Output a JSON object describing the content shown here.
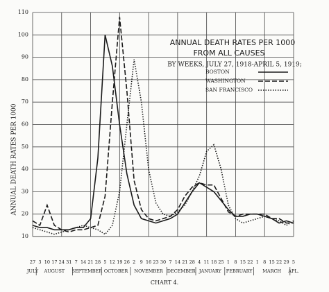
{
  "chart_data": {
    "type": "line",
    "title": [
      "ANNUAL DEATH RATES PER 1000",
      "FROM ALL CAUSES",
      "BY WEEKS, JULY 27, 1918-APRIL 5, 1919;"
    ],
    "y_label": "ANNUAL DEATH RATES PER 1000",
    "caption": "CHART 4.",
    "categories": [
      "27",
      "3",
      "10",
      "17",
      "24",
      "31",
      "7",
      "14",
      "21",
      "28",
      "5",
      "12",
      "19",
      "26",
      "2",
      "9",
      "16",
      "23",
      "30",
      "7",
      "14",
      "21",
      "28",
      "4",
      "11",
      "18",
      "25",
      "1",
      "8",
      "15",
      "22",
      "1",
      "8",
      "15",
      "22",
      "29",
      "5"
    ],
    "months": [
      {
        "label": "JULY",
        "weeks": 1
      },
      {
        "label": "AUGUST",
        "weeks": 5
      },
      {
        "label": "SEPTEMBER",
        "weeks": 4
      },
      {
        "label": "OCTOBER",
        "weeks": 4
      },
      {
        "label": "NOVEMBER",
        "weeks": 5
      },
      {
        "label": "DECEMBER",
        "weeks": 4
      },
      {
        "label": "JANUARY",
        "weeks": 4
      },
      {
        "label": "FEBRUARY",
        "weeks": 4
      },
      {
        "label": "MARCH",
        "weeks": 5
      },
      {
        "label": "APL.",
        "weeks": 1
      }
    ],
    "series": [
      {
        "name": "BOSTON",
        "color": "#1a1a1a",
        "dash": "solid",
        "values": [
          15,
          14,
          14,
          13,
          13,
          13,
          14,
          14,
          18,
          45,
          100,
          86,
          60,
          38,
          24,
          18,
          17,
          16,
          17,
          18,
          20,
          25,
          30,
          34,
          32,
          30,
          26,
          22,
          19,
          19,
          20,
          20,
          19,
          18,
          16,
          17,
          16
        ]
      },
      {
        "name": "WASHINGTON",
        "color": "#1a1a1a",
        "dash": "dashed",
        "values": [
          17,
          15,
          24,
          15,
          13,
          12,
          13,
          13,
          14,
          15,
          28,
          70,
          108,
          75,
          35,
          22,
          18,
          17,
          18,
          19,
          22,
          28,
          32,
          34,
          33,
          33,
          27,
          21,
          19,
          20,
          20,
          20,
          20,
          18,
          18,
          16,
          16
        ]
      },
      {
        "name": "SAN FRANCISCO",
        "color": "#1a1a1a",
        "dash": "dotted",
        "values": [
          14,
          13,
          12,
          11,
          12,
          13,
          14,
          15,
          14,
          13,
          11,
          15,
          30,
          60,
          89,
          70,
          40,
          25,
          20,
          19,
          21,
          24,
          30,
          37,
          48,
          51,
          40,
          24,
          18,
          16,
          17,
          18,
          19,
          18,
          17,
          15,
          17
        ]
      }
    ],
    "ylim": [
      10,
      110
    ],
    "yticks": [
      10,
      20,
      30,
      40,
      50,
      60,
      70,
      80,
      90,
      100,
      110
    ],
    "grid": true
  }
}
